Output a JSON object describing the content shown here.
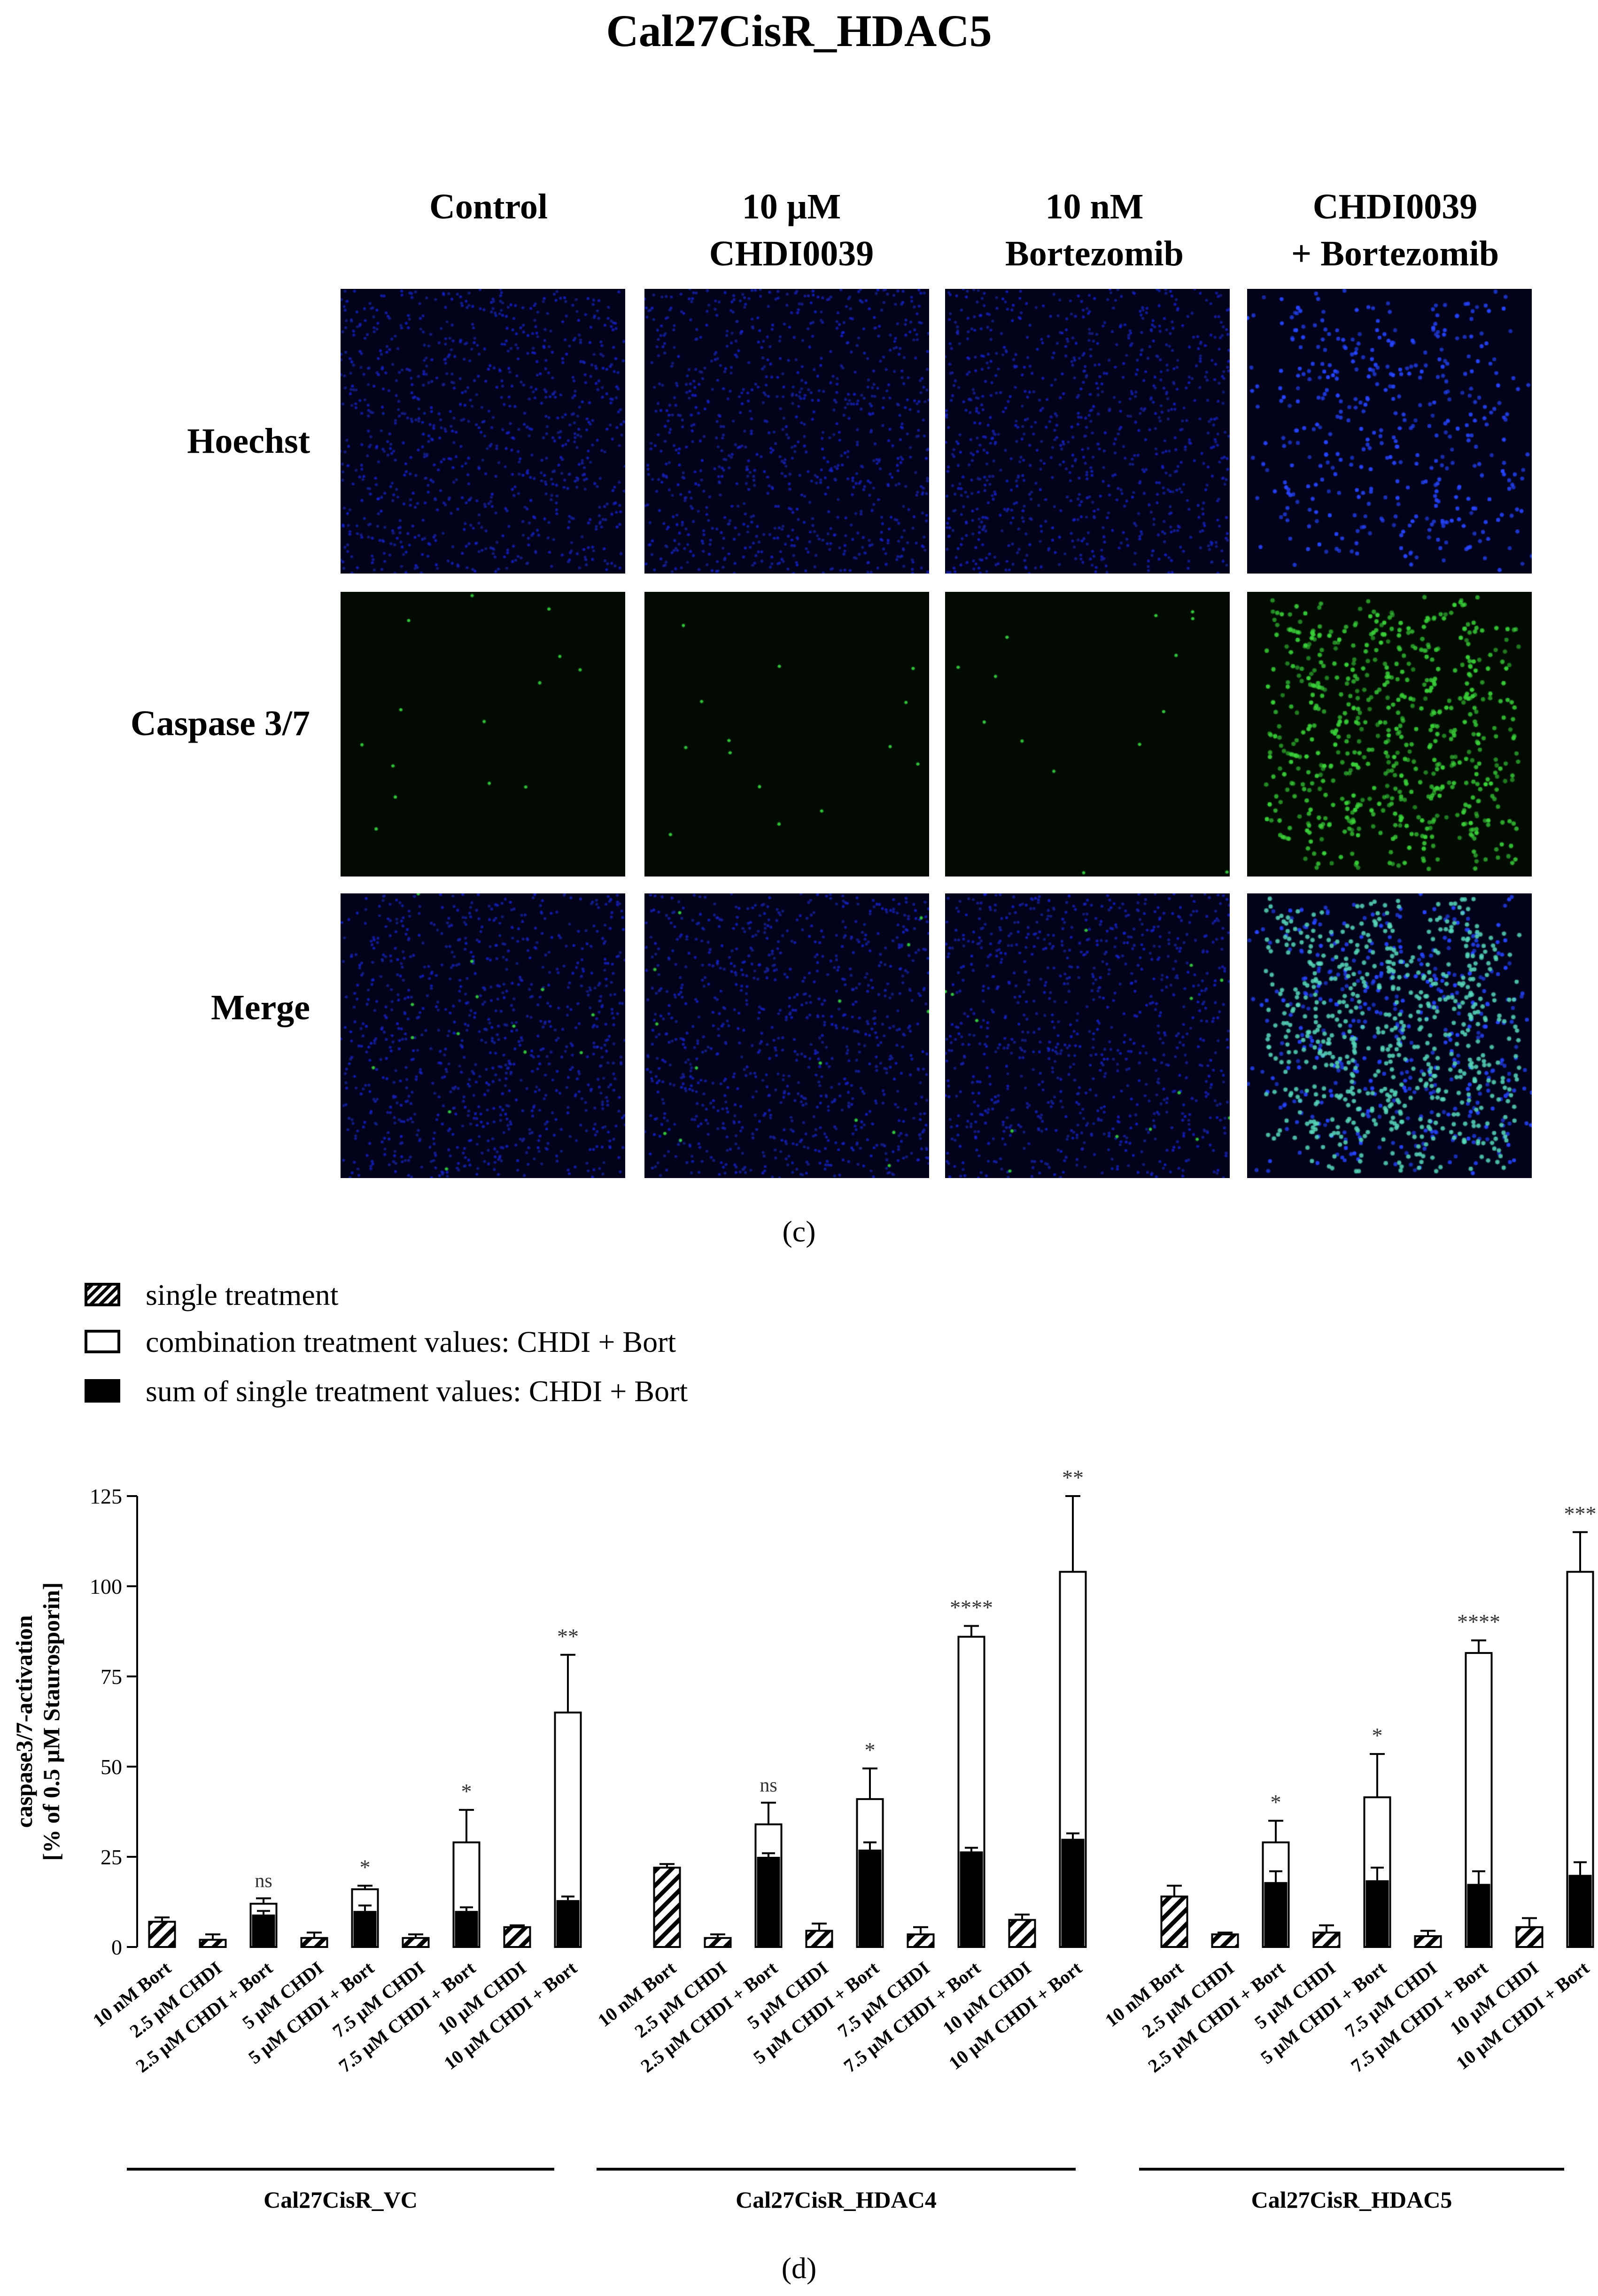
{
  "figure_title": "Cal27CisR_HDAC5",
  "microscopy": {
    "columns": [
      "Control",
      "10 µM|CHDI0039",
      "10 nM|Bortezomib",
      "CHDI0039|+ Bortezomib"
    ],
    "rows": [
      "Hoechst",
      "Caspase 3/7",
      "Merge"
    ],
    "panel_label": "(c)"
  },
  "legend": [
    {
      "label": "single treatment",
      "style": "hatched"
    },
    {
      "label": "combination treatment values: CHDI + Bort",
      "style": "white"
    },
    {
      "label": "sum of single treatment values: CHDI + Bort",
      "style": "black"
    }
  ],
  "chart_data": {
    "type": "bar",
    "ylabel_line1": "caspase3/7-activation",
    "ylabel_line2": "[% of 0.5 µM Staurosporin]",
    "ylim": [
      0,
      125
    ],
    "yticks": [
      0,
      25,
      50,
      75,
      100,
      125
    ],
    "categories": [
      "10 nM Bort",
      "2.5 µM CHDI",
      "2.5 µM CHDI + Bort",
      "5 µM CHDI",
      "5 µM CHDI + Bort",
      "7.5 µM CHDI",
      "7.5 µM CHDI + Bort",
      "10 µM CHDI",
      "10 µM CHDI + Bort"
    ],
    "groups": [
      {
        "name": "Cal27CisR_VC",
        "bars": [
          {
            "single": 7,
            "err": 1.2
          },
          {
            "single": 2,
            "err": 1.5
          },
          {
            "combo": 12,
            "combo_err": 1.5,
            "sum": 9,
            "sum_err": 1,
            "sig": "ns"
          },
          {
            "single": 2.5,
            "err": 1.5
          },
          {
            "combo": 16,
            "combo_err": 1,
            "sum": 10,
            "sum_err": 1.5,
            "sig": "*"
          },
          {
            "single": 2.5,
            "err": 1
          },
          {
            "combo": 29,
            "combo_err": 9,
            "sum": 10,
            "sum_err": 1,
            "sig": "*"
          },
          {
            "single": 5.5,
            "err": 0.5
          },
          {
            "combo": 65,
            "combo_err": 16,
            "sum": 13,
            "sum_err": 1,
            "sig": "**"
          }
        ]
      },
      {
        "name": "Cal27CisR_HDAC4",
        "bars": [
          {
            "single": 22,
            "err": 1
          },
          {
            "single": 2.5,
            "err": 1
          },
          {
            "combo": 34,
            "combo_err": 6,
            "sum": 25,
            "sum_err": 1,
            "sig": "ns"
          },
          {
            "single": 4.5,
            "err": 2
          },
          {
            "combo": 41,
            "combo_err": 8.5,
            "sum": 27,
            "sum_err": 2,
            "sig": "*"
          },
          {
            "single": 3.5,
            "err": 2
          },
          {
            "combo": 86,
            "combo_err": 3,
            "sum": 26.5,
            "sum_err": 1,
            "sig": "****"
          },
          {
            "single": 7.5,
            "err": 1.5
          },
          {
            "combo": 104,
            "combo_err": 21,
            "sum": 30,
            "sum_err": 1.5,
            "sig": "**"
          }
        ]
      },
      {
        "name": "Cal27CisR_HDAC5",
        "bars": [
          {
            "single": 14,
            "err": 3
          },
          {
            "single": 3.5,
            "err": 0.5
          },
          {
            "combo": 29,
            "combo_err": 6,
            "sum": 18,
            "sum_err": 3,
            "sig": "*"
          },
          {
            "single": 4,
            "err": 2
          },
          {
            "combo": 41.5,
            "combo_err": 12,
            "sum": 18.5,
            "sum_err": 3.5,
            "sig": "*"
          },
          {
            "single": 3,
            "err": 1.5
          },
          {
            "combo": 81.5,
            "combo_err": 3.5,
            "sum": 17.5,
            "sum_err": 3.5,
            "sig": "****"
          },
          {
            "single": 5.5,
            "err": 2.5
          },
          {
            "combo": 104,
            "combo_err": 11,
            "sum": 20,
            "sum_err": 3.5,
            "sig": "***"
          }
        ]
      }
    ]
  },
  "chart_panel_label": "(d)"
}
